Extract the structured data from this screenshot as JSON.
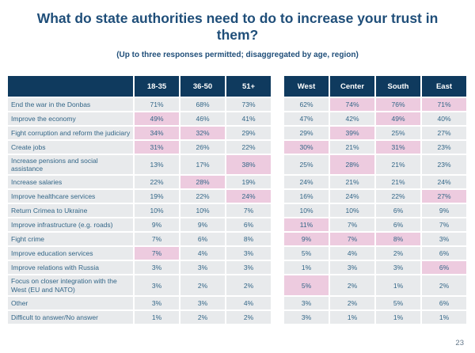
{
  "slide": {
    "page_number": "23"
  },
  "colors": {
    "header_bg": "#0f3a5e",
    "header_text": "#ffffff",
    "row_bg": "#e8eaec",
    "highlight_bg": "#edcbdf",
    "title_text": "#1f4e79",
    "cell_text": "#336687",
    "page_number_text": "#64788a"
  },
  "chart_data": {
    "type": "table",
    "title": "What do state authorities need to do to increase your trust in them?",
    "subtitle": "(Up to three responses permitted; disaggregated by age, region)",
    "unit": "%",
    "column_groups": [
      {
        "name": "age",
        "columns": [
          "18-35",
          "36-50",
          "51+"
        ]
      },
      {
        "name": "region",
        "columns": [
          "West",
          "Center",
          "South",
          "East"
        ]
      }
    ],
    "columns": [
      "18-35",
      "36-50",
      "51+",
      "West",
      "Center",
      "South",
      "East"
    ],
    "highlight_style": "pink cell background",
    "rows": [
      {
        "label": "End the war in the Donbas",
        "values": [
          71,
          68,
          73,
          62,
          74,
          76,
          71
        ],
        "highlighted": [
          0,
          0,
          0,
          0,
          1,
          1,
          1
        ]
      },
      {
        "label": "Improve the economy",
        "values": [
          49,
          46,
          41,
          47,
          42,
          49,
          40
        ],
        "highlighted": [
          1,
          0,
          0,
          0,
          0,
          1,
          0
        ]
      },
      {
        "label": "Fight corruption and reform the judiciary",
        "values": [
          34,
          32,
          29,
          29,
          39,
          25,
          27
        ],
        "highlighted": [
          1,
          1,
          0,
          0,
          1,
          0,
          0
        ]
      },
      {
        "label": "Create jobs",
        "values": [
          31,
          26,
          22,
          30,
          21,
          31,
          23
        ],
        "highlighted": [
          1,
          0,
          0,
          1,
          0,
          1,
          0
        ]
      },
      {
        "label": "Increase pensions and social assistance",
        "values": [
          13,
          17,
          38,
          25,
          28,
          21,
          23
        ],
        "highlighted": [
          0,
          0,
          1,
          0,
          1,
          0,
          0
        ]
      },
      {
        "label": "Increase salaries",
        "values": [
          22,
          28,
          19,
          24,
          21,
          21,
          24
        ],
        "highlighted": [
          0,
          1,
          0,
          0,
          0,
          0,
          0
        ]
      },
      {
        "label": "Improve healthcare services",
        "values": [
          19,
          22,
          24,
          16,
          24,
          22,
          27
        ],
        "highlighted": [
          0,
          0,
          1,
          0,
          0,
          0,
          1
        ]
      },
      {
        "label": "Return Crimea to Ukraine",
        "values": [
          10,
          10,
          7,
          10,
          10,
          6,
          9
        ],
        "highlighted": [
          0,
          0,
          0,
          0,
          0,
          0,
          0
        ]
      },
      {
        "label": "Improve infrastructure (e.g. roads)",
        "values": [
          9,
          9,
          6,
          11,
          7,
          6,
          7
        ],
        "highlighted": [
          0,
          0,
          0,
          1,
          0,
          0,
          0
        ]
      },
      {
        "label": "Fight crime",
        "values": [
          7,
          6,
          8,
          9,
          7,
          8,
          3
        ],
        "highlighted": [
          0,
          0,
          0,
          1,
          1,
          1,
          0
        ]
      },
      {
        "label": "Improve education services",
        "values": [
          7,
          4,
          3,
          5,
          4,
          2,
          6
        ],
        "highlighted": [
          1,
          0,
          0,
          0,
          0,
          0,
          0
        ]
      },
      {
        "label": "Improve relations with Russia",
        "values": [
          3,
          3,
          3,
          1,
          3,
          3,
          6
        ],
        "highlighted": [
          0,
          0,
          0,
          0,
          0,
          0,
          1
        ]
      },
      {
        "label": "Focus on closer integration with the West (EU and NATO)",
        "values": [
          3,
          2,
          2,
          5,
          2,
          1,
          2
        ],
        "highlighted": [
          0,
          0,
          0,
          1,
          0,
          0,
          0
        ]
      },
      {
        "label": "Other",
        "values": [
          3,
          3,
          4,
          3,
          2,
          5,
          6
        ],
        "highlighted": [
          0,
          0,
          0,
          0,
          0,
          0,
          0
        ]
      },
      {
        "label": "Difficult to answer/No answer",
        "values": [
          1,
          2,
          2,
          3,
          1,
          1,
          1
        ],
        "highlighted": [
          0,
          0,
          0,
          0,
          0,
          0,
          0
        ]
      }
    ]
  }
}
